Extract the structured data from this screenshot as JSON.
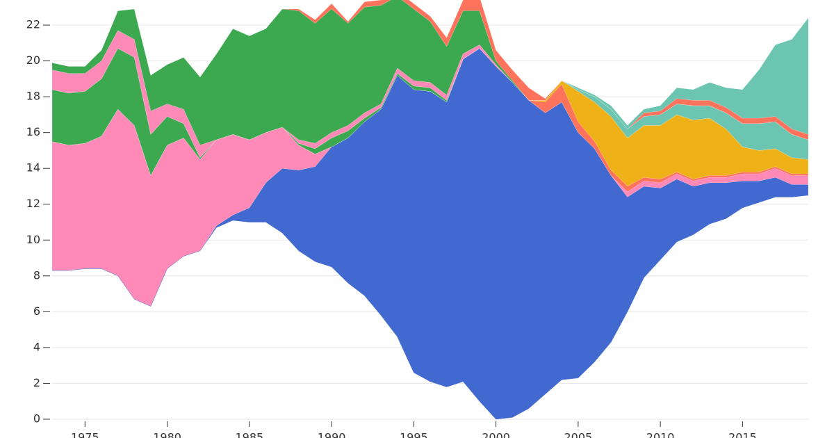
{
  "chart_data": {
    "type": "streamgraph",
    "x": [
      1973,
      1974,
      1975,
      1976,
      1977,
      1978,
      1979,
      1980,
      1981,
      1982,
      1983,
      1984,
      1985,
      1986,
      1987,
      1988,
      1989,
      1990,
      1991,
      1992,
      1993,
      1994,
      1995,
      1996,
      1997,
      1998,
      1999,
      2000,
      2001,
      2002,
      2003,
      2004,
      2005,
      2006,
      2007,
      2008,
      2009,
      2010,
      2011,
      2012,
      2013,
      2014,
      2015,
      2016,
      2017,
      2018,
      2019
    ],
    "baseline": [
      8.3,
      8.3,
      8.4,
      8.4,
      8.0,
      6.7,
      6.3,
      8.4,
      9.1,
      9.4,
      10.7,
      11.1,
      11.0,
      11.0,
      10.4,
      9.4,
      8.8,
      8.5,
      7.6,
      6.9,
      5.8,
      4.6,
      2.6,
      2.1,
      1.8,
      2.1,
      1.0,
      0.0,
      0.1,
      0.6,
      1.4,
      2.2,
      2.3,
      3.2,
      4.3,
      6.0,
      7.9,
      8.9,
      9.9,
      10.3,
      10.9,
      11.2,
      11.8,
      12.1,
      12.4,
      12.4,
      12.5
    ],
    "series": [
      {
        "color": "#4269d0",
        "values": [
          0,
          0,
          0,
          0,
          0,
          0,
          0,
          0,
          0,
          0,
          0.1,
          0.3,
          0.8,
          2.2,
          3.6,
          4.5,
          5.3,
          6.7,
          8.1,
          9.7,
          11.5,
          14.6,
          15.8,
          16.2,
          15.9,
          18.0,
          19.7,
          19.7,
          18.7,
          17.2,
          15.7,
          15.5,
          13.7,
          11.9,
          9.3,
          6.4,
          5.1,
          4.0,
          3.5,
          2.7,
          2.3,
          2.0,
          1.5,
          1.2,
          1.1,
          0.7,
          0.6
        ]
      },
      {
        "color": "#ff8ab7",
        "values": [
          7.2,
          7.0,
          7.0,
          7.4,
          9.3,
          9.7,
          7.3,
          6.9,
          6.6,
          5.1,
          4.8,
          4.5,
          3.8,
          2.8,
          2.3,
          1.4,
          0.7,
          0,
          0,
          0,
          0,
          0,
          0,
          0,
          0,
          0,
          0,
          0,
          0,
          0,
          0,
          0,
          0,
          0,
          0,
          0.3,
          0.3,
          0.3,
          0.3,
          0.3,
          0.3,
          0.3,
          0.4,
          0.4,
          0.5,
          0.5,
          0.5
        ]
      },
      {
        "color": "#ff725c",
        "values": [
          0,
          0,
          0,
          0,
          0,
          0,
          0,
          0,
          0,
          0,
          0,
          0,
          0,
          0,
          0,
          0,
          0,
          0,
          0,
          0,
          0,
          0,
          0,
          0,
          0,
          0,
          0,
          0,
          0,
          0,
          0.6,
          1.0,
          0.6,
          0.4,
          0.3,
          0.3,
          0.2,
          0.2,
          0.1,
          0.1,
          0.1,
          0.1,
          0.1,
          0.1,
          0.1,
          0.1,
          0.1
        ]
      },
      {
        "color": "#efb118",
        "values": [
          0,
          0,
          0,
          0,
          0,
          0,
          0,
          0,
          0,
          0,
          0,
          0,
          0,
          0,
          0,
          0,
          0,
          0,
          0,
          0,
          0,
          0,
          0,
          0,
          0,
          0,
          0,
          0,
          0,
          0,
          0.1,
          0.2,
          1.7,
          2.2,
          3.0,
          2.7,
          2.9,
          3.0,
          3.2,
          3.3,
          3.2,
          2.6,
          1.4,
          1.2,
          1.0,
          0.9,
          0.8
        ]
      },
      {
        "color": "#3ca951",
        "values": [
          2.9,
          2.9,
          2.9,
          3.2,
          3.4,
          3.8,
          2.3,
          1.6,
          0.8,
          0.1,
          0,
          0,
          0,
          0,
          0,
          0.1,
          0.3,
          0.5,
          0.4,
          0.2,
          0.1,
          0.1,
          0.2,
          0.2,
          0.1,
          0,
          0,
          0,
          0,
          0,
          0,
          0,
          0,
          0,
          0,
          0,
          0,
          0,
          0,
          0,
          0,
          0,
          0,
          0,
          0,
          0,
          0
        ]
      },
      {
        "color": "#6cc5b0",
        "values": [
          0,
          0,
          0,
          0,
          0,
          0,
          0,
          0,
          0,
          0,
          0,
          0,
          0,
          0,
          0,
          0,
          0,
          0,
          0,
          0,
          0,
          0,
          0,
          0,
          0,
          0,
          0,
          0,
          0,
          0,
          0,
          0,
          0.1,
          0.3,
          0.4,
          0.5,
          0.5,
          0.6,
          0.6,
          0.8,
          0.7,
          0.9,
          1.3,
          1.5,
          1.5,
          1.3,
          1.1
        ]
      },
      {
        "color": "#ff8ab7",
        "values": [
          1.1,
          1.1,
          1.0,
          1.0,
          1.0,
          1.0,
          1.3,
          0.7,
          0.8,
          0.7,
          0,
          0,
          0,
          0,
          0,
          0.2,
          0.3,
          0.3,
          0.3,
          0.3,
          0.2,
          0.3,
          0.3,
          0.3,
          0.3,
          0.3,
          0.2,
          0.1,
          0,
          0,
          0,
          0,
          0,
          0,
          0,
          0,
          0,
          0,
          0,
          0,
          0,
          0,
          0,
          0,
          0,
          0,
          0
        ]
      },
      {
        "color": "#3ca951",
        "values": [
          0.4,
          0.4,
          0.4,
          0.6,
          1.1,
          1.7,
          2.0,
          2.2,
          2.9,
          3.8,
          4.8,
          5.9,
          5.8,
          5.8,
          6.6,
          7.2,
          6.7,
          6.9,
          5.7,
          5.9,
          5.5,
          4.0,
          4.0,
          3.4,
          2.7,
          2.4,
          1.9,
          0.2,
          0.1,
          0,
          0,
          0,
          0,
          0,
          0,
          0,
          0,
          0,
          0,
          0,
          0,
          0,
          0,
          0,
          0,
          0,
          0
        ]
      },
      {
        "color": "#ff725c",
        "values": [
          0,
          0,
          0,
          0,
          0,
          0,
          0,
          0,
          0,
          0,
          0,
          0,
          0,
          0,
          0,
          0.1,
          0.2,
          0.3,
          0.1,
          0.3,
          0.3,
          0.3,
          0.3,
          0.3,
          0.5,
          0.6,
          0.8,
          0.6,
          0.6,
          0.7,
          0.1,
          0,
          0,
          0,
          0,
          0,
          0.2,
          0.2,
          0.3,
          0.3,
          0.3,
          0.3,
          0.3,
          0.3,
          0.3,
          0.3,
          0.3
        ]
      },
      {
        "color": "#6cc5b0",
        "values": [
          0,
          0,
          0,
          0,
          0,
          0,
          0,
          0,
          0,
          0,
          0,
          0,
          0,
          0,
          0,
          0,
          0,
          0,
          0,
          0,
          0,
          0,
          0,
          0,
          0,
          0,
          0,
          0,
          0,
          0,
          0,
          0,
          0.1,
          0.1,
          0.2,
          0.2,
          0.2,
          0.3,
          0.6,
          0.6,
          1.0,
          1.1,
          1.6,
          2.7,
          4.0,
          5.0,
          6.5
        ]
      }
    ],
    "xlim": [
      1973,
      2019
    ],
    "xticks": [
      1975,
      1980,
      1985,
      1990,
      1995,
      2000,
      2005,
      2010,
      2015
    ],
    "ylim": [
      -1.05,
      23.4
    ],
    "yticks": [
      0,
      2,
      4,
      6,
      8,
      10,
      12,
      14,
      16,
      18,
      20,
      22
    ],
    "grid": true
  }
}
